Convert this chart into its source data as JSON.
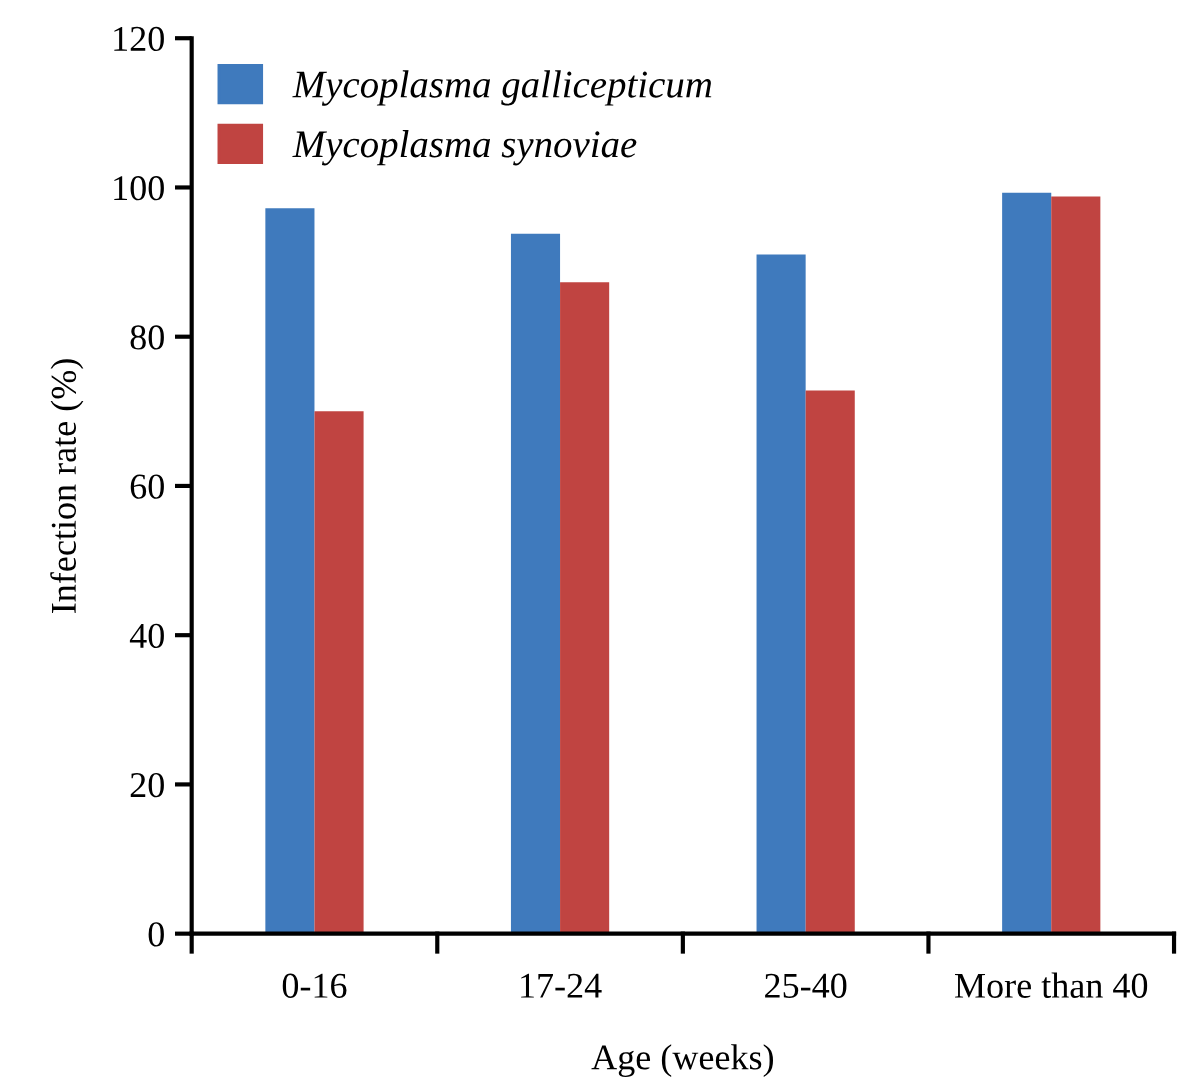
{
  "chart_data": {
    "type": "bar",
    "xlabel": "Age (weeks)",
    "ylabel": "Infection rate (%)",
    "categories": [
      "0-16",
      "17-24",
      "25-40",
      "More than 40"
    ],
    "series": [
      {
        "name": "Mycoplasma gallicepticum",
        "color": "#3f7abd",
        "values": [
          97.2,
          93.8,
          91.0,
          99.3
        ]
      },
      {
        "name": "Mycoplasma synoviae",
        "color": "#c04441",
        "values": [
          70.0,
          87.3,
          72.8,
          98.8
        ]
      }
    ],
    "ylim": [
      0,
      120
    ],
    "yticks": [
      0,
      20,
      40,
      60,
      80,
      100,
      120
    ],
    "grid": false,
    "legend": "top left"
  }
}
